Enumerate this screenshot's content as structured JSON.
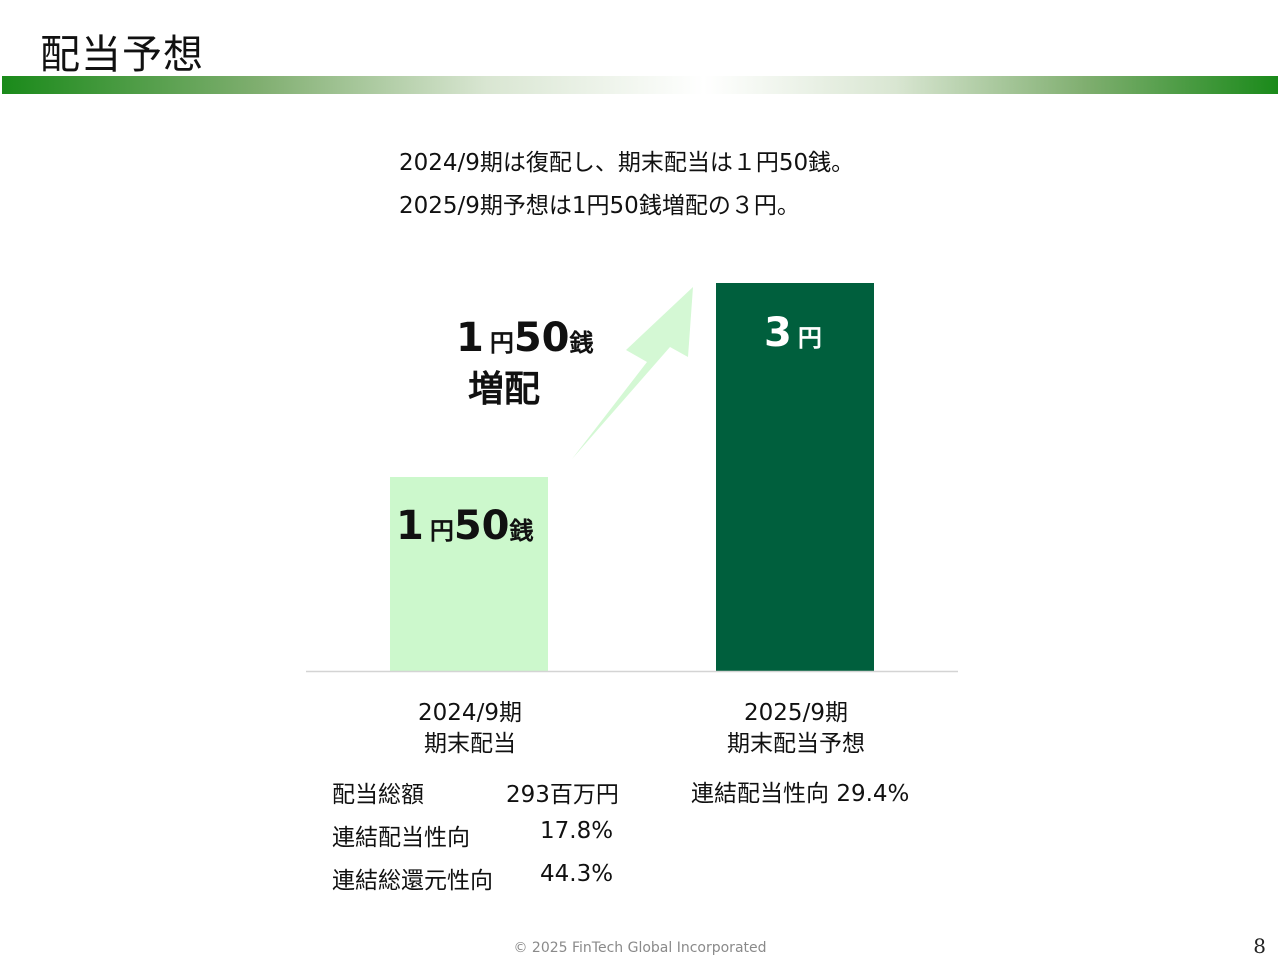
{
  "slide": {
    "title": "配当予想",
    "summary_line1": "2024/9期は復配し、期末配当は１円50銭。",
    "summary_line2": "2025/9期予想は1円50銭増配の３円。",
    "footer": "© 2025 FinTech Global Incorporated",
    "page_number": "8"
  },
  "chart_data": {
    "type": "bar",
    "categories": [
      "2024/9期 期末配当",
      "2025/9期 期末配当予想"
    ],
    "category_lines": [
      [
        "2024/9期",
        "期末配当"
      ],
      [
        "2025/9期",
        "期末配当予想"
      ]
    ],
    "values": [
      1.5,
      3.0
    ],
    "unit": "円",
    "data_labels": [
      {
        "number": "1",
        "unit": "円",
        "fraction": "50",
        "fraction_unit": "銭"
      },
      {
        "number": "3",
        "unit": "円"
      }
    ],
    "annotation": {
      "number": "1",
      "unit": "円",
      "fraction": "50",
      "fraction_unit": "銭",
      "text": "増配"
    },
    "colors": [
      "#ccf8cc",
      "#005f3d"
    ],
    "arrow_color": "#d4f8d4",
    "ylim": [
      0,
      3.0
    ],
    "title": "",
    "xlabel": "",
    "ylabel": ""
  },
  "stats": {
    "left": [
      {
        "label": "配当総額",
        "value": "293百万円"
      },
      {
        "label": "連結配当性向",
        "value": "17.8%"
      },
      {
        "label": "連結総還元性向",
        "value": "44.3%"
      }
    ],
    "right": [
      {
        "label": "連結配当性向",
        "value": "29.4%"
      }
    ]
  }
}
